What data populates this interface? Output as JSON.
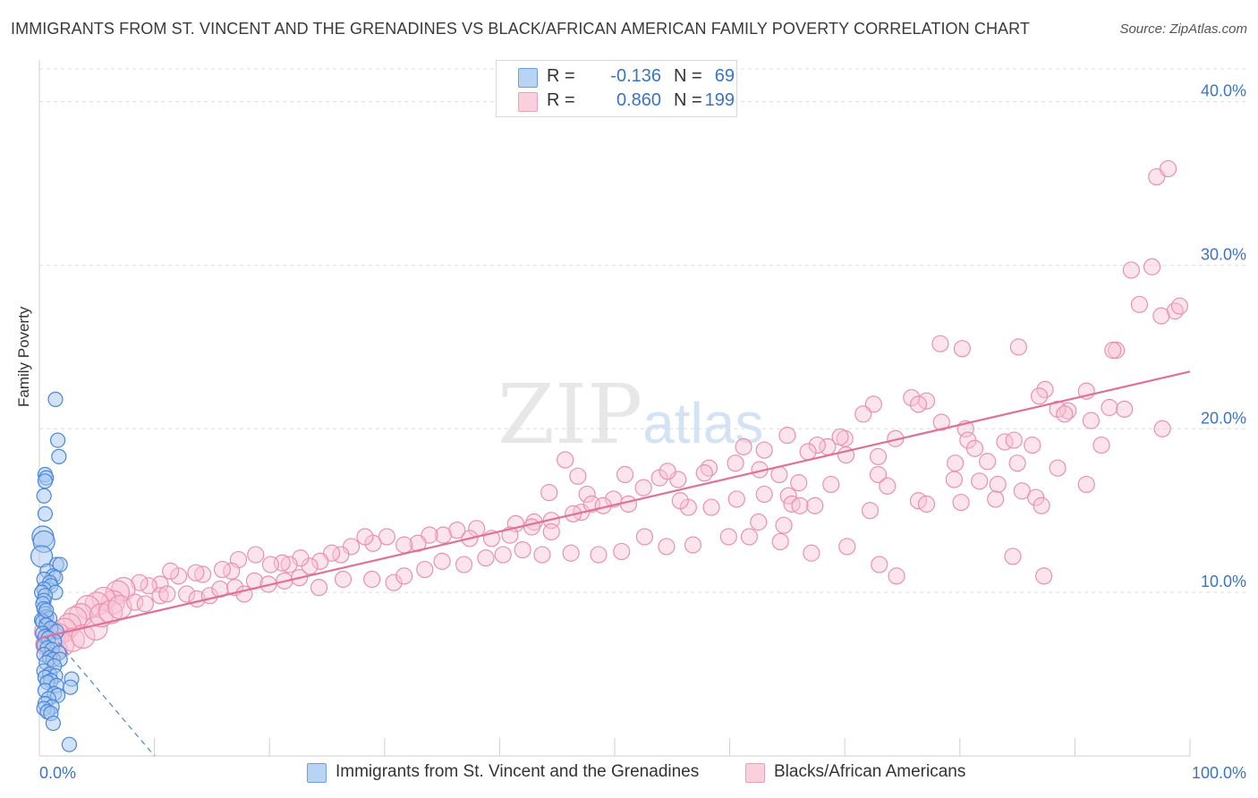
{
  "title": "IMMIGRANTS FROM ST. VINCENT AND THE GRENADINES VS BLACK/AFRICAN AMERICAN FAMILY POVERTY CORRELATION CHART",
  "source": "Source: ZipAtlas.com",
  "watermark": {
    "zip": "ZIP",
    "atlas": "atlas"
  },
  "legend": {
    "series1": {
      "r_label": "R =",
      "r_value": "-0.136",
      "n_label": "N =",
      "n_value": "69"
    },
    "series2": {
      "r_label": "R =",
      "r_value": "0.860",
      "n_label": "N =",
      "n_value": "199"
    }
  },
  "colors": {
    "series1_fill": "#a8c8f0",
    "series1_stroke": "#4a86d8",
    "series1_line": "#4a86d8",
    "series2_fill": "#f8c4d4",
    "series2_stroke": "#e891ae",
    "series2_line": "#e0709a",
    "tick_text": "#3a74c8",
    "grid": "#dedede"
  },
  "chart_data": {
    "type": "scatter",
    "title": "IMMIGRANTS FROM ST. VINCENT AND THE GRENADINES VS BLACK/AFRICAN AMERICAN FAMILY POVERTY CORRELATION CHART",
    "xlabel": "",
    "ylabel": "Family Poverty",
    "xlim": [
      0,
      100
    ],
    "ylim": [
      0,
      42
    ],
    "x_tick_labels": [
      "0.0%",
      "100.0%"
    ],
    "y_ticks": [
      10,
      20,
      30,
      40
    ],
    "y_tick_labels": [
      "10.0%",
      "20.0%",
      "30.0%",
      "40.0%"
    ],
    "grid": true,
    "series": [
      {
        "name": "Immigrants from St. Vincent and the Grenadines",
        "r": -0.136,
        "n": 69,
        "trend": {
          "x": [
            0,
            10
          ],
          "y": [
            8.3,
            0
          ]
        },
        "trend_style": "dashed",
        "points": [
          [
            1.4,
            21.8
          ],
          [
            1.6,
            19.3
          ],
          [
            1.7,
            18.3
          ],
          [
            0.5,
            17.2
          ],
          [
            0.6,
            17.0
          ],
          [
            0.5,
            16.8
          ],
          [
            0.4,
            15.9
          ],
          [
            0.5,
            14.8
          ],
          [
            0.3,
            13.4
          ],
          [
            0.4,
            13.1
          ],
          [
            0.2,
            12.2
          ],
          [
            1.5,
            11.7
          ],
          [
            1.8,
            11.7
          ],
          [
            0.7,
            11.3
          ],
          [
            1.2,
            11.0
          ],
          [
            1.4,
            10.9
          ],
          [
            0.4,
            10.8
          ],
          [
            0.9,
            10.6
          ],
          [
            1.0,
            10.4
          ],
          [
            0.4,
            10.2
          ],
          [
            1.4,
            10.0
          ],
          [
            0.2,
            10.0
          ],
          [
            0.5,
            9.8
          ],
          [
            0.4,
            9.5
          ],
          [
            0.3,
            9.3
          ],
          [
            0.4,
            9.0
          ],
          [
            0.5,
            8.7
          ],
          [
            0.6,
            8.5
          ],
          [
            0.9,
            8.4
          ],
          [
            0.2,
            8.3
          ],
          [
            0.3,
            8.2
          ],
          [
            0.6,
            8.0
          ],
          [
            1.0,
            7.8
          ],
          [
            1.5,
            7.6
          ],
          [
            0.3,
            7.5
          ],
          [
            0.5,
            7.3
          ],
          [
            0.8,
            7.2
          ],
          [
            1.3,
            7.0
          ],
          [
            0.4,
            6.8
          ],
          [
            0.7,
            6.6
          ],
          [
            1.1,
            6.5
          ],
          [
            1.7,
            6.3
          ],
          [
            0.4,
            6.2
          ],
          [
            0.9,
            6.0
          ],
          [
            1.2,
            5.9
          ],
          [
            1.8,
            5.9
          ],
          [
            0.6,
            5.7
          ],
          [
            1.3,
            5.5
          ],
          [
            0.4,
            5.2
          ],
          [
            0.9,
            5.0
          ],
          [
            1.4,
            4.9
          ],
          [
            0.5,
            4.8
          ],
          [
            1.0,
            4.6
          ],
          [
            2.8,
            4.7
          ],
          [
            0.7,
            4.5
          ],
          [
            1.5,
            4.3
          ],
          [
            2.7,
            4.2
          ],
          [
            0.5,
            4.0
          ],
          [
            1.3,
            3.8
          ],
          [
            1.6,
            3.7
          ],
          [
            0.8,
            3.5
          ],
          [
            0.5,
            3.2
          ],
          [
            1.1,
            3.0
          ],
          [
            0.4,
            2.9
          ],
          [
            0.7,
            2.7
          ],
          [
            1.0,
            2.6
          ],
          [
            1.2,
            2.0
          ],
          [
            2.6,
            0.7
          ],
          [
            0.6,
            8.9
          ]
        ]
      },
      {
        "name": "Blacks/African Americans",
        "r": 0.86,
        "n": 199,
        "trend": {
          "x": [
            0,
            100
          ],
          "y": [
            7.2,
            23.5
          ]
        },
        "trend_style": "solid",
        "points": [
          [
            97.1,
            35.4
          ],
          [
            98.1,
            35.9
          ],
          [
            94.9,
            29.7
          ],
          [
            96.7,
            29.9
          ],
          [
            98.7,
            27.2
          ],
          [
            97.5,
            26.9
          ],
          [
            99.1,
            27.5
          ],
          [
            95.6,
            27.6
          ],
          [
            78.3,
            25.2
          ],
          [
            80.2,
            24.9
          ],
          [
            85.1,
            25.0
          ],
          [
            93.6,
            24.8
          ],
          [
            93.3,
            24.8
          ],
          [
            87.4,
            22.4
          ],
          [
            86.9,
            22.0
          ],
          [
            91.0,
            22.3
          ],
          [
            93.0,
            21.3
          ],
          [
            94.3,
            21.2
          ],
          [
            89.4,
            21.1
          ],
          [
            88.5,
            21.2
          ],
          [
            91.4,
            20.5
          ],
          [
            89.1,
            20.9
          ],
          [
            97.6,
            20.0
          ],
          [
            77.1,
            21.7
          ],
          [
            75.8,
            21.9
          ],
          [
            76.4,
            21.5
          ],
          [
            72.5,
            21.5
          ],
          [
            71.6,
            20.9
          ],
          [
            78.4,
            20.4
          ],
          [
            80.5,
            20.0
          ],
          [
            80.7,
            19.3
          ],
          [
            83.9,
            19.2
          ],
          [
            86.3,
            19.0
          ],
          [
            84.7,
            19.3
          ],
          [
            92.3,
            19.0
          ],
          [
            74.4,
            19.4
          ],
          [
            70.0,
            19.4
          ],
          [
            68.5,
            18.9
          ],
          [
            69.6,
            19.5
          ],
          [
            67.6,
            19.0
          ],
          [
            66.8,
            18.6
          ],
          [
            72.9,
            18.3
          ],
          [
            81.3,
            18.8
          ],
          [
            82.4,
            18.0
          ],
          [
            79.6,
            17.9
          ],
          [
            85.0,
            17.9
          ],
          [
            88.5,
            17.6
          ],
          [
            70.1,
            18.4
          ],
          [
            65.0,
            19.6
          ],
          [
            61.2,
            18.9
          ],
          [
            63.0,
            18.7
          ],
          [
            60.5,
            17.9
          ],
          [
            58.2,
            17.6
          ],
          [
            53.9,
            17.0
          ],
          [
            55.5,
            16.9
          ],
          [
            52.5,
            16.4
          ],
          [
            50.9,
            17.2
          ],
          [
            54.6,
            17.4
          ],
          [
            57.8,
            17.3
          ],
          [
            62.6,
            17.5
          ],
          [
            64.3,
            17.2
          ],
          [
            66.0,
            16.7
          ],
          [
            68.8,
            16.6
          ],
          [
            72.9,
            17.2
          ],
          [
            79.5,
            16.9
          ],
          [
            81.7,
            16.8
          ],
          [
            83.3,
            16.6
          ],
          [
            85.4,
            16.2
          ],
          [
            91.0,
            16.6
          ],
          [
            73.7,
            16.5
          ],
          [
            76.4,
            15.6
          ],
          [
            77.1,
            15.4
          ],
          [
            72.2,
            15.0
          ],
          [
            80.1,
            15.5
          ],
          [
            83.1,
            15.7
          ],
          [
            86.6,
            15.8
          ],
          [
            87.1,
            15.3
          ],
          [
            56.4,
            15.2
          ],
          [
            60.6,
            15.7
          ],
          [
            63.0,
            16.0
          ],
          [
            65.1,
            15.9
          ],
          [
            65.4,
            15.4
          ],
          [
            66.1,
            15.3
          ],
          [
            67.4,
            15.3
          ],
          [
            62.5,
            14.3
          ],
          [
            64.7,
            14.1
          ],
          [
            58.4,
            15.2
          ],
          [
            55.7,
            15.6
          ],
          [
            51.2,
            15.4
          ],
          [
            49.9,
            15.7
          ],
          [
            47.6,
            16.0
          ],
          [
            44.3,
            16.1
          ],
          [
            46.8,
            17.1
          ],
          [
            45.7,
            18.1
          ],
          [
            47.1,
            14.9
          ],
          [
            48.0,
            15.4
          ],
          [
            49.0,
            15.3
          ],
          [
            46.4,
            14.8
          ],
          [
            44.5,
            14.4
          ],
          [
            43.0,
            14.3
          ],
          [
            44.5,
            13.7
          ],
          [
            42.8,
            14.0
          ],
          [
            41.4,
            14.2
          ],
          [
            40.9,
            13.5
          ],
          [
            39.3,
            13.3
          ],
          [
            38.0,
            13.9
          ],
          [
            37.4,
            13.3
          ],
          [
            36.3,
            13.8
          ],
          [
            35.1,
            13.5
          ],
          [
            33.9,
            13.5
          ],
          [
            32.9,
            13.0
          ],
          [
            31.7,
            12.9
          ],
          [
            30.2,
            13.4
          ],
          [
            29.0,
            13.0
          ],
          [
            28.3,
            13.4
          ],
          [
            27.1,
            12.8
          ],
          [
            26.2,
            12.3
          ],
          [
            25.4,
            12.4
          ],
          [
            24.4,
            11.9
          ],
          [
            23.5,
            11.6
          ],
          [
            22.7,
            12.1
          ],
          [
            21.7,
            11.7
          ],
          [
            21.1,
            11.8
          ],
          [
            20.1,
            11.7
          ],
          [
            18.8,
            12.3
          ],
          [
            17.3,
            12.0
          ],
          [
            16.7,
            11.3
          ],
          [
            15.9,
            11.4
          ],
          [
            14.2,
            11.1
          ],
          [
            13.6,
            11.2
          ],
          [
            12.1,
            11.0
          ],
          [
            11.4,
            11.3
          ],
          [
            10.5,
            10.5
          ],
          [
            9.5,
            10.4
          ],
          [
            8.7,
            10.6
          ],
          [
            7.3,
            10.2
          ],
          [
            6.8,
            10.0
          ],
          [
            6.4,
            9.4
          ],
          [
            5.6,
            9.6
          ],
          [
            5.0,
            9.3
          ],
          [
            4.2,
            9.1
          ],
          [
            3.6,
            8.6
          ],
          [
            3.1,
            8.4
          ],
          [
            2.6,
            8.0
          ],
          [
            2.2,
            7.7
          ],
          [
            1.6,
            7.4
          ],
          [
            1.2,
            7.2
          ],
          [
            0.9,
            7.0
          ],
          [
            0.7,
            6.8
          ],
          [
            0.6,
            7.6
          ],
          [
            1.4,
            6.5
          ],
          [
            2.0,
            6.8
          ],
          [
            2.9,
            7.1
          ],
          [
            3.8,
            7.3
          ],
          [
            4.9,
            7.8
          ],
          [
            5.4,
            8.6
          ],
          [
            6.2,
            8.8
          ],
          [
            7.0,
            9.1
          ],
          [
            8.3,
            9.4
          ],
          [
            9.2,
            9.3
          ],
          [
            10.5,
            9.8
          ],
          [
            11.1,
            9.9
          ],
          [
            12.8,
            9.9
          ],
          [
            13.7,
            9.6
          ],
          [
            14.8,
            9.8
          ],
          [
            15.7,
            10.2
          ],
          [
            17.0,
            10.3
          ],
          [
            17.8,
            9.9
          ],
          [
            18.7,
            10.7
          ],
          [
            19.9,
            10.5
          ],
          [
            21.3,
            10.7
          ],
          [
            22.6,
            10.9
          ],
          [
            24.3,
            10.3
          ],
          [
            26.4,
            10.8
          ],
          [
            28.9,
            10.8
          ],
          [
            30.8,
            10.6
          ],
          [
            31.7,
            11.0
          ],
          [
            33.5,
            11.4
          ],
          [
            35.0,
            11.9
          ],
          [
            36.9,
            11.7
          ],
          [
            38.8,
            12.1
          ],
          [
            40.3,
            12.3
          ],
          [
            42.0,
            12.6
          ],
          [
            43.7,
            12.3
          ],
          [
            46.2,
            12.4
          ],
          [
            48.6,
            12.3
          ],
          [
            50.6,
            12.5
          ],
          [
            52.6,
            13.4
          ],
          [
            54.5,
            12.8
          ],
          [
            56.8,
            12.9
          ],
          [
            59.9,
            13.4
          ],
          [
            61.7,
            13.4
          ],
          [
            64.4,
            13.1
          ],
          [
            67.1,
            12.4
          ],
          [
            70.2,
            12.8
          ],
          [
            73.0,
            11.7
          ],
          [
            74.5,
            11.0
          ],
          [
            84.6,
            12.2
          ],
          [
            87.3,
            11.0
          ]
        ]
      }
    ]
  },
  "bottom_legend": {
    "item1": "Immigrants from St. Vincent and the Grenadines",
    "item2": "Blacks/African Americans"
  }
}
